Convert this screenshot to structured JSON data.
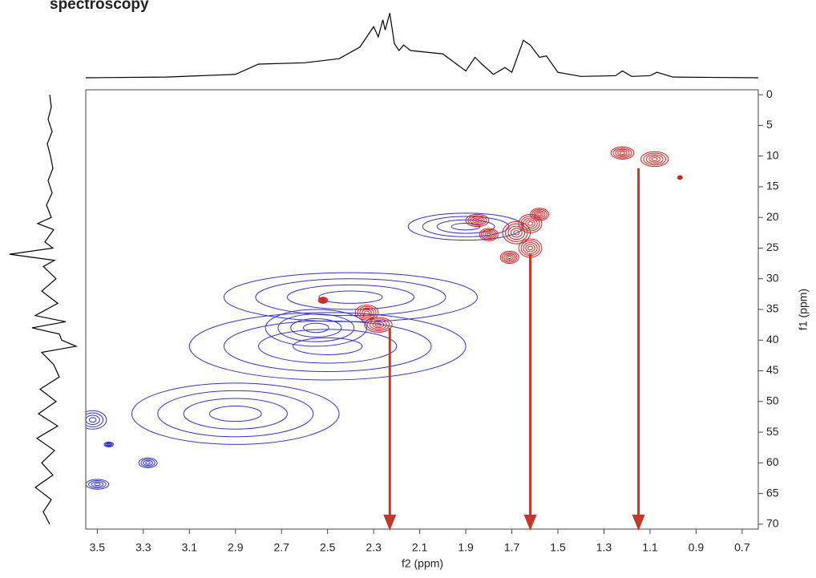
{
  "chart_data": {
    "type": "contour",
    "title": "spectroscopy",
    "x_label": "f2 (ppm)",
    "y_label": "f1 (ppm)",
    "xlim": [
      3.55,
      0.63
    ],
    "ylim": [
      -0.8,
      70.8
    ],
    "xticks": [
      3.5,
      3.3,
      3.1,
      2.9,
      2.7,
      2.5,
      2.3,
      2.1,
      1.9,
      1.7,
      1.5,
      1.3,
      1.1,
      0.9,
      0.7
    ],
    "yticks": [
      0,
      5,
      10,
      15,
      20,
      25,
      30,
      35,
      40,
      45,
      50,
      55,
      60,
      65,
      70
    ],
    "series": [
      {
        "color": "#3333cc",
        "levels": 4,
        "x": [
          1.9,
          2.4,
          2.5,
          2.9,
          2.55,
          3.52,
          3.28,
          3.5,
          3.45
        ],
        "y": [
          21.5,
          33,
          41,
          52,
          38,
          53,
          60,
          63.5,
          57
        ],
        "rx": [
          0.25,
          0.55,
          0.6,
          0.45,
          0.22,
          0.06,
          0.04,
          0.05,
          0.02
        ],
        "ry": [
          2.2,
          4,
          5.5,
          5,
          3,
          1.5,
          0.8,
          0.8,
          0.4
        ]
      },
      {
        "color": "#cc2222",
        "levels": 5,
        "x": [
          1.22,
          1.08,
          0.97,
          1.85,
          1.8,
          1.68,
          1.62,
          1.58,
          1.62,
          1.71,
          2.33,
          2.28,
          2.52
        ],
        "y": [
          9.5,
          10.5,
          13.5,
          20.5,
          22.8,
          22.5,
          21,
          19.5,
          25,
          26.5,
          35.5,
          37.5,
          33.5
        ],
        "rx": [
          0.05,
          0.06,
          0.01,
          0.05,
          0.04,
          0.06,
          0.05,
          0.04,
          0.05,
          0.04,
          0.05,
          0.06,
          0.02
        ],
        "ry": [
          1,
          1.2,
          0.3,
          1,
          1,
          1.8,
          1.5,
          1,
          1.5,
          1,
          1.2,
          1.2,
          0.5
        ]
      }
    ],
    "arrows": {
      "color": "#c0392b",
      "x": [
        2.23,
        1.62,
        1.15
      ],
      "from": [
        38,
        26,
        12
      ]
    },
    "top_projection": {
      "color": "#000000",
      "x": [
        3.55,
        3.2,
        2.9,
        2.8,
        2.6,
        2.45,
        2.36,
        2.3,
        2.28,
        2.26,
        2.25,
        2.23,
        2.21,
        2.19,
        2.17,
        2.14,
        2.0,
        1.9,
        1.86,
        1.83,
        1.78,
        1.73,
        1.7,
        1.65,
        1.62,
        1.58,
        1.55,
        1.5,
        1.4,
        1.25,
        1.22,
        1.18,
        1.1,
        1.07,
        1.0,
        0.63
      ],
      "values": [
        0,
        1,
        5,
        20,
        22,
        28,
        45,
        75,
        60,
        85,
        70,
        95,
        50,
        40,
        48,
        40,
        35,
        10,
        30,
        20,
        5,
        15,
        8,
        55,
        48,
        30,
        32,
        8,
        2,
        3,
        10,
        2,
        3,
        8,
        1,
        0
      ]
    },
    "left_projection": {
      "color": "#000000",
      "y": [
        0,
        2,
        4,
        6,
        8,
        10,
        12,
        14,
        16,
        18,
        20,
        21,
        22,
        24,
        25,
        26,
        27,
        28,
        30,
        32,
        34,
        36,
        37,
        38,
        39,
        40,
        41,
        42,
        44,
        46,
        48,
        50,
        52,
        54,
        56,
        58,
        60,
        62,
        64,
        66,
        68,
        70
      ],
      "values": [
        0,
        2,
        -2,
        3,
        -3,
        1,
        4,
        -2,
        3,
        -4,
        2,
        -15,
        5,
        -6,
        4,
        -50,
        6,
        -8,
        8,
        -10,
        10,
        -18,
        20,
        -22,
        12,
        15,
        33,
        -10,
        5,
        12,
        -12,
        8,
        -14,
        10,
        -16,
        6,
        -10,
        4,
        -18,
        2,
        -8,
        0
      ]
    }
  }
}
